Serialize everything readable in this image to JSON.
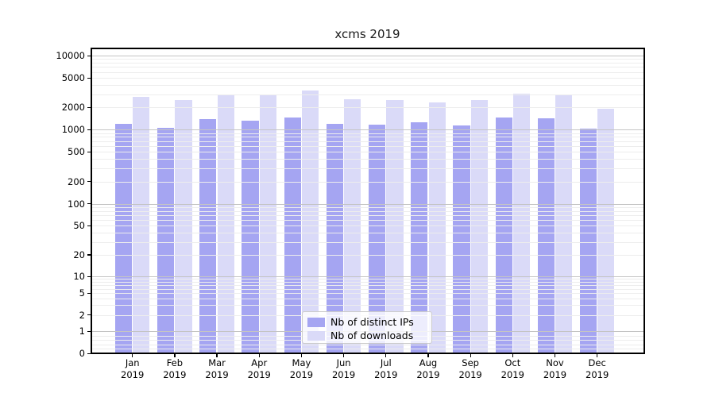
{
  "title": "xcms 2019",
  "colors": {
    "ips": "#a5a5f2",
    "downloads": "#dadaf8",
    "grid_major": "#c4c4c4",
    "grid_minor": "#ededed",
    "spine": "#000000"
  },
  "legend": {
    "items": [
      {
        "label": "Nb of distinct IPs",
        "color_key": "ips"
      },
      {
        "label": "Nb of downloads",
        "color_key": "downloads"
      }
    ]
  },
  "chart_data": {
    "type": "bar",
    "title": "xcms 2019",
    "categories": [
      "Jan",
      "Feb",
      "Mar",
      "Apr",
      "May",
      "Jun",
      "Jul",
      "Aug",
      "Sep",
      "Oct",
      "Nov",
      "Dec"
    ],
    "category_year": "2019",
    "series": [
      {
        "name": "Nb of distinct IPs",
        "color_key": "ips",
        "values": [
          1210,
          1065,
          1390,
          1330,
          1470,
          1210,
          1180,
          1250,
          1150,
          1450,
          1420,
          1030
        ]
      },
      {
        "name": "Nb of downloads",
        "color_key": "downloads",
        "values": [
          2750,
          2500,
          2960,
          3000,
          3350,
          2570,
          2530,
          2310,
          2530,
          3030,
          2930,
          1930
        ]
      }
    ],
    "yscale": "symlog",
    "ylim": [
      0,
      12000
    ],
    "y_ticks": [
      {
        "value": 10000,
        "label": "10000"
      },
      {
        "value": 5000,
        "label": "5000"
      },
      {
        "value": 2000,
        "label": "2000"
      },
      {
        "value": 1000,
        "label": "1000"
      },
      {
        "value": 500,
        "label": "500"
      },
      {
        "value": 200,
        "label": "200"
      },
      {
        "value": 100,
        "label": "100"
      },
      {
        "value": 50,
        "label": "50"
      },
      {
        "value": 20,
        "label": "20"
      },
      {
        "value": 10,
        "label": "10"
      },
      {
        "value": 5,
        "label": "5"
      },
      {
        "value": 2,
        "label": "2"
      },
      {
        "value": 1,
        "label": "1"
      },
      {
        "value": 0,
        "label": "0"
      }
    ],
    "grid": "horizontal",
    "legend_position": "lower center"
  }
}
